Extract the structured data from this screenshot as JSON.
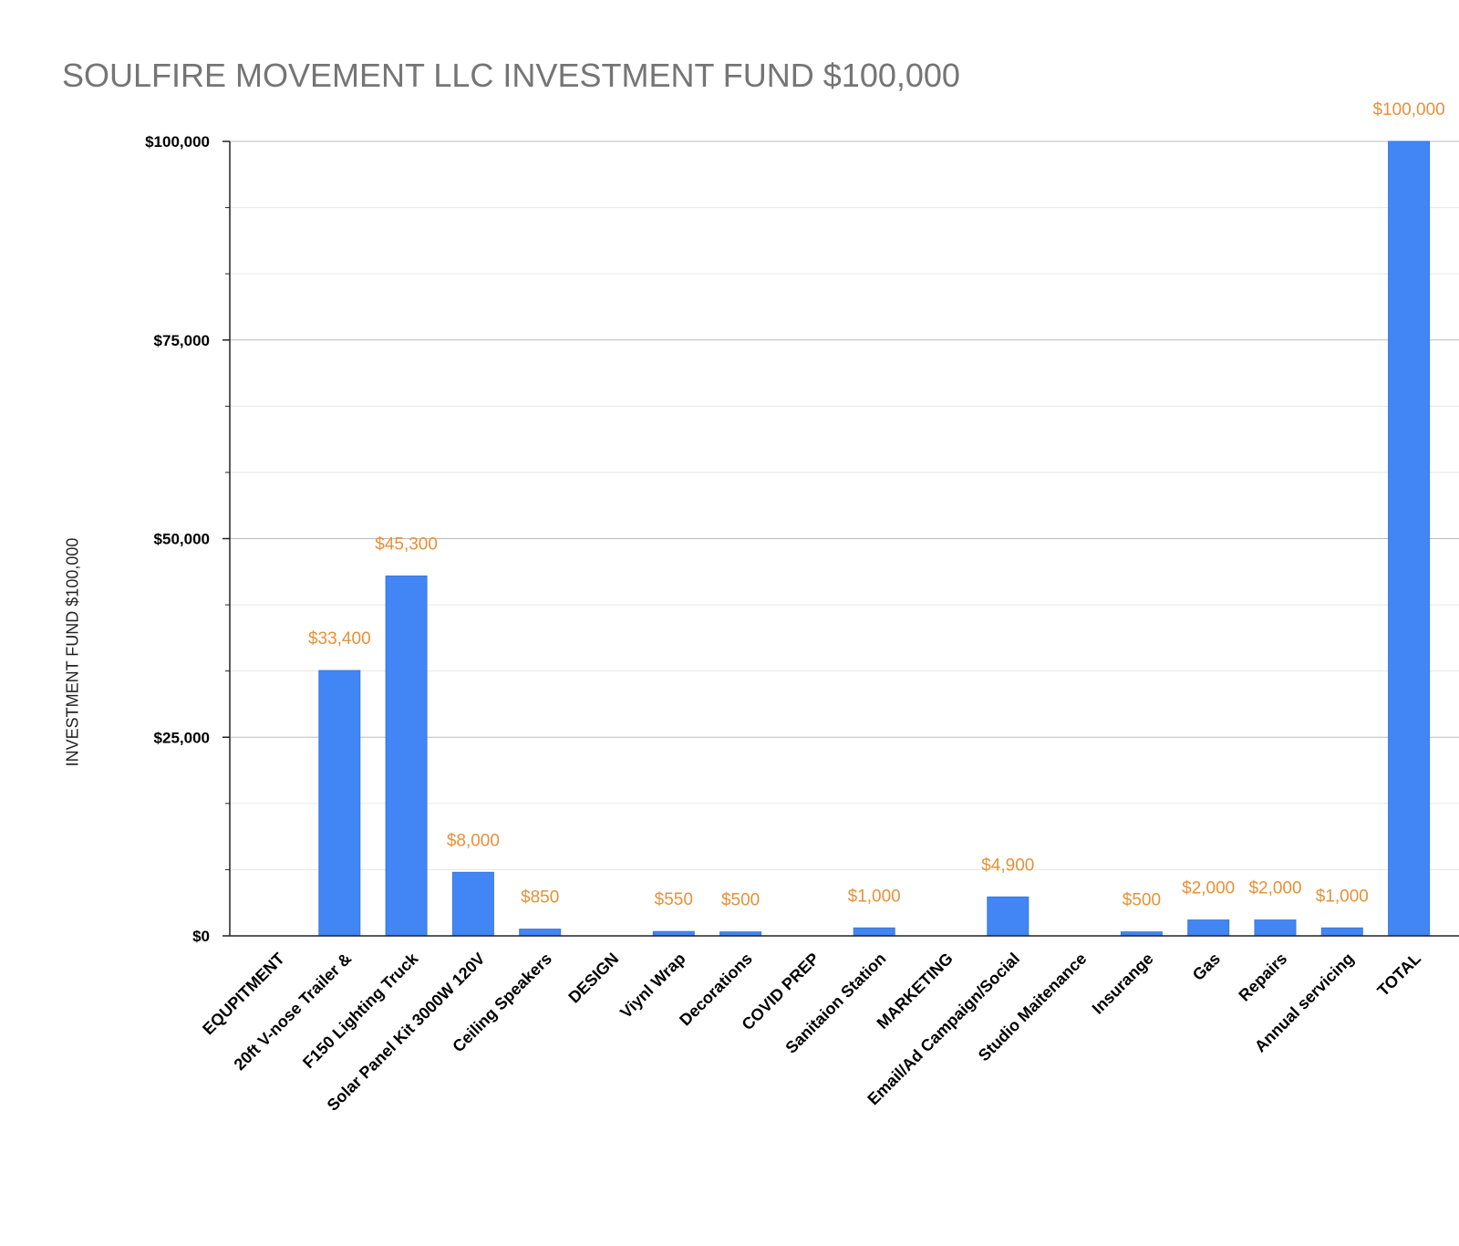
{
  "chart_data": {
    "type": "bar",
    "title": "SOULFIRE MOVEMENT LLC INVESTMENT FUND $100,000",
    "xlabel": "",
    "ylabel": "INVESTMENT FUND $100,000",
    "ylim": [
      0,
      100000
    ],
    "yticks": [
      0,
      25000,
      50000,
      75000,
      100000
    ],
    "ytick_labels": [
      "$0",
      "$25,000",
      "$50,000",
      "$75,000",
      "$100,000"
    ],
    "grid": true,
    "categories": [
      "EQUPITMENT",
      "20ft V-nose Trailer &",
      "F150 Lighting Truck",
      "Solar Panel Kit 3000W 120V",
      "Ceiling Speakers",
      "DESIGN",
      "Viynl Wrap",
      "Decorations",
      "COVID PREP",
      "Sanitaion Station",
      "MARKETING",
      "Email/Ad Campaign/Social",
      "Studio Maitenance",
      "Insurange",
      "Gas",
      "Repairs",
      "Annual servicing",
      "TOTAL"
    ],
    "values": [
      null,
      33400,
      45300,
      8000,
      850,
      null,
      550,
      500,
      null,
      1000,
      null,
      4900,
      null,
      500,
      2000,
      2000,
      1000,
      100000
    ],
    "data_labels": [
      "",
      "$33,400",
      "$45,300",
      "$8,000",
      "$850",
      "",
      "$550",
      "$500",
      "",
      "$1,000",
      "",
      "$4,900",
      "",
      "$500",
      "$2,000",
      "$2,000",
      "$1,000",
      "$100,000"
    ],
    "colors": {
      "bar": "#4285f4",
      "bar_edge": "#3a78e0",
      "data_label": "#e69138",
      "grid_major": "#bdbdbd",
      "grid_minor": "#e6e6e6",
      "axis": "#222222"
    }
  }
}
